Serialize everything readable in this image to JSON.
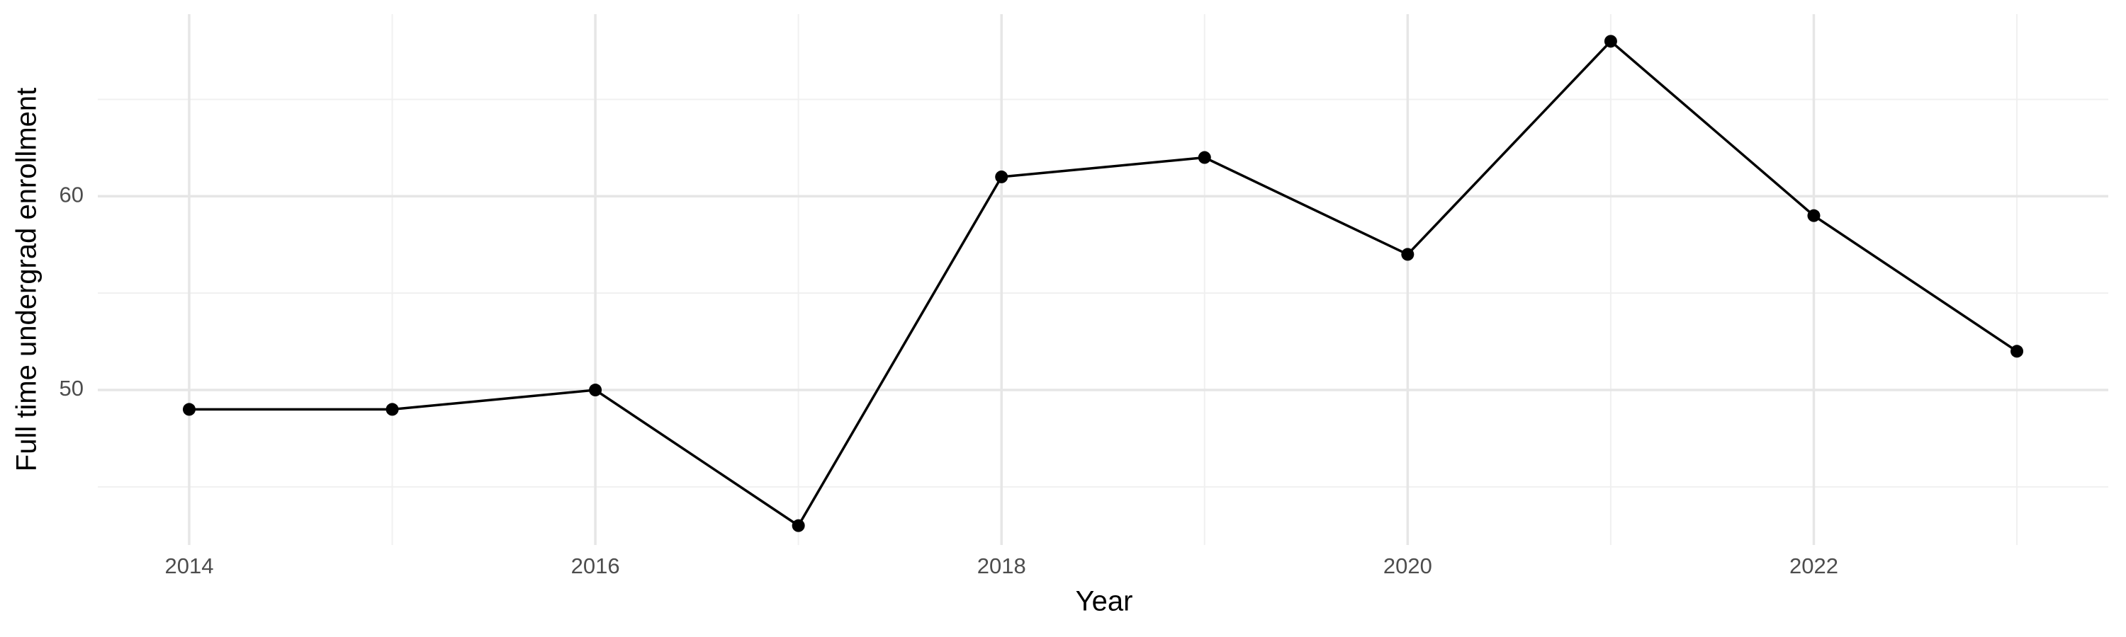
{
  "chart_data": {
    "type": "line",
    "x_label": "Year",
    "y_label": "Full time undergrad enrollment",
    "x": [
      2014,
      2015,
      2016,
      2017,
      2018,
      2019,
      2020,
      2021,
      2022,
      2023
    ],
    "series": [
      {
        "color": "#000000",
        "values": [
          49,
          49,
          50,
          43,
          61,
          62,
          57,
          68,
          59,
          52
        ]
      }
    ],
    "xlim": [
      2013.55,
      2023.45
    ],
    "xticks": [
      2014,
      2016,
      2018,
      2020,
      2022
    ],
    "ylim": [
      42,
      69.4
    ],
    "yticks": [
      50,
      60
    ],
    "x_minor_grid": [
      2015,
      2017,
      2019,
      2021,
      2023
    ],
    "y_minor_grid": [
      45,
      55,
      65
    ],
    "grid": true
  }
}
